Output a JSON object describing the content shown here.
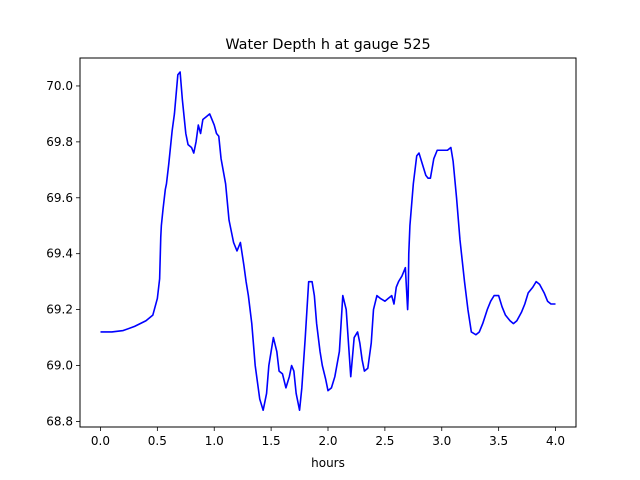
{
  "chart_data": {
    "type": "line",
    "title": "Water Depth h at gauge 525",
    "xlabel": "hours",
    "ylabel": "",
    "xlim": [
      -0.18,
      4.18
    ],
    "ylim": [
      68.78,
      70.1
    ],
    "xticks": [
      0.0,
      0.5,
      1.0,
      1.5,
      2.0,
      2.5,
      3.0,
      3.5,
      4.0
    ],
    "xtick_labels": [
      "0.0",
      "0.5",
      "1.0",
      "1.5",
      "2.0",
      "2.5",
      "3.0",
      "3.5",
      "4.0"
    ],
    "yticks": [
      68.8,
      69.0,
      69.2,
      69.4,
      69.6,
      69.8,
      70.0
    ],
    "ytick_labels": [
      "68.8",
      "69.0",
      "69.2",
      "69.4",
      "69.6",
      "69.8",
      "70.0"
    ],
    "grid": false,
    "series": [
      {
        "color": "#0000ff",
        "x": [
          0.0,
          0.1,
          0.2,
          0.3,
          0.4,
          0.46,
          0.5,
          0.52,
          0.53,
          0.535,
          0.55,
          0.57,
          0.58,
          0.6,
          0.63,
          0.65,
          0.68,
          0.7,
          0.72,
          0.75,
          0.77,
          0.8,
          0.82,
          0.84,
          0.86,
          0.88,
          0.9,
          0.93,
          0.96,
          1.0,
          1.02,
          1.04,
          1.06,
          1.1,
          1.13,
          1.17,
          1.2,
          1.23,
          1.26,
          1.28,
          1.3,
          1.33,
          1.36,
          1.4,
          1.43,
          1.46,
          1.48,
          1.5,
          1.52,
          1.55,
          1.57,
          1.6,
          1.63,
          1.66,
          1.68,
          1.7,
          1.72,
          1.75,
          1.77,
          1.8,
          1.83,
          1.86,
          1.88,
          1.9,
          1.93,
          1.95,
          1.98,
          2.0,
          2.03,
          2.06,
          2.1,
          2.13,
          2.16,
          2.2,
          2.23,
          2.26,
          2.28,
          2.3,
          2.32,
          2.35,
          2.38,
          2.4,
          2.43,
          2.46,
          2.5,
          2.53,
          2.56,
          2.58,
          2.6,
          2.62,
          2.65,
          2.68,
          2.7,
          2.705,
          2.71,
          2.72,
          2.75,
          2.78,
          2.8,
          2.83,
          2.86,
          2.88,
          2.9,
          2.93,
          2.96,
          3.0,
          3.05,
          3.08,
          3.1,
          3.13,
          3.16,
          3.2,
          3.23,
          3.26,
          3.3,
          3.33,
          3.36,
          3.4,
          3.43,
          3.46,
          3.5,
          3.53,
          3.56,
          3.6,
          3.63,
          3.66,
          3.7,
          3.73,
          3.76,
          3.8,
          3.83,
          3.86,
          3.9,
          3.93,
          3.96,
          4.0
        ],
        "y": [
          69.12,
          69.12,
          69.125,
          69.14,
          69.16,
          69.18,
          69.24,
          69.31,
          69.46,
          69.5,
          69.56,
          69.63,
          69.65,
          69.72,
          69.84,
          69.9,
          70.04,
          70.05,
          69.95,
          69.83,
          69.79,
          69.78,
          69.76,
          69.8,
          69.86,
          69.83,
          69.88,
          69.89,
          69.9,
          69.86,
          69.83,
          69.82,
          69.74,
          69.65,
          69.52,
          69.44,
          69.41,
          69.44,
          69.36,
          69.3,
          69.25,
          69.15,
          69.0,
          68.88,
          68.84,
          68.9,
          69.0,
          69.05,
          69.1,
          69.05,
          68.98,
          68.97,
          68.92,
          68.96,
          69.0,
          68.98,
          68.9,
          68.84,
          68.92,
          69.1,
          69.3,
          69.3,
          69.25,
          69.15,
          69.05,
          69.0,
          68.95,
          68.91,
          68.92,
          68.96,
          69.05,
          69.25,
          69.2,
          68.96,
          69.1,
          69.12,
          69.08,
          69.02,
          68.98,
          68.99,
          69.08,
          69.2,
          69.25,
          69.24,
          69.23,
          69.24,
          69.25,
          69.22,
          69.28,
          69.3,
          69.32,
          69.35,
          69.2,
          69.25,
          69.4,
          69.5,
          69.65,
          69.75,
          69.76,
          69.72,
          69.68,
          69.67,
          69.67,
          69.74,
          69.77,
          69.77,
          69.77,
          69.78,
          69.73,
          69.6,
          69.45,
          69.3,
          69.2,
          69.12,
          69.11,
          69.12,
          69.15,
          69.2,
          69.23,
          69.25,
          69.25,
          69.21,
          69.18,
          69.16,
          69.15,
          69.16,
          69.19,
          69.22,
          69.26,
          69.28,
          69.3,
          69.29,
          69.26,
          69.23,
          69.22,
          69.22
        ]
      }
    ]
  }
}
